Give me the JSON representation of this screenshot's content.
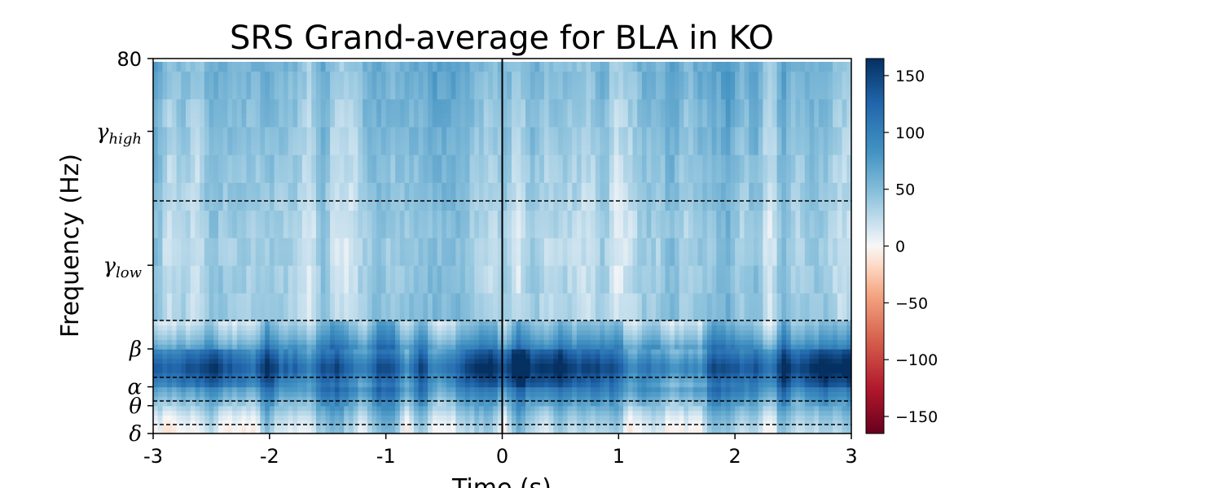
{
  "chart_data": {
    "type": "heatmap",
    "title": "SRS Grand-average for BLA in KO",
    "xlabel": "Time (s)",
    "ylabel": "Frequency (Hz)",
    "xlim": [
      -3,
      3
    ],
    "ylim": [
      0,
      80
    ],
    "x_ticks": [
      {
        "value": -3,
        "label": "-3"
      },
      {
        "value": -2,
        "label": "-2"
      },
      {
        "value": -1,
        "label": "-1"
      },
      {
        "value": 0,
        "label": "0"
      },
      {
        "value": 1,
        "label": "1"
      },
      {
        "value": 2,
        "label": "2"
      },
      {
        "value": 3,
        "label": "3"
      }
    ],
    "y_ticks": [
      {
        "value": 0,
        "label": "δ",
        "sub": ""
      },
      {
        "value": 6,
        "label": "θ",
        "sub": ""
      },
      {
        "value": 10,
        "label": "α",
        "sub": ""
      },
      {
        "value": 18,
        "label": "β",
        "sub": ""
      },
      {
        "value": 36,
        "label": "γ",
        "sub": "low"
      },
      {
        "value": 65,
        "label": "γ",
        "sub": "high"
      },
      {
        "value": 80,
        "label": "80",
        "sub": ""
      }
    ],
    "band_boundaries_hz": [
      2,
      7,
      12,
      24,
      50
    ],
    "event_time_s": 0,
    "colorbar": {
      "colormap": "RdBu_r",
      "vmin": -165,
      "vmax": 165,
      "ticks": [
        150,
        100,
        50,
        0,
        -50,
        -100,
        -150
      ],
      "tick_labels": [
        "150",
        "100",
        "50",
        "0",
        "−50",
        "−100",
        "−150"
      ]
    },
    "value_profile_by_frequency": [
      {
        "freq_hz": 1,
        "value": 22
      },
      {
        "freq_hz": 4,
        "value": 38
      },
      {
        "freq_hz": 8,
        "value": 80
      },
      {
        "freq_hz": 11,
        "value": 110
      },
      {
        "freq_hz": 14,
        "value": 140
      },
      {
        "freq_hz": 17,
        "value": 110
      },
      {
        "freq_hz": 20,
        "value": 70
      },
      {
        "freq_hz": 24,
        "value": 38
      },
      {
        "freq_hz": 40,
        "value": 32
      },
      {
        "freq_hz": 60,
        "value": 42
      },
      {
        "freq_hz": 78,
        "value": 55
      }
    ]
  }
}
